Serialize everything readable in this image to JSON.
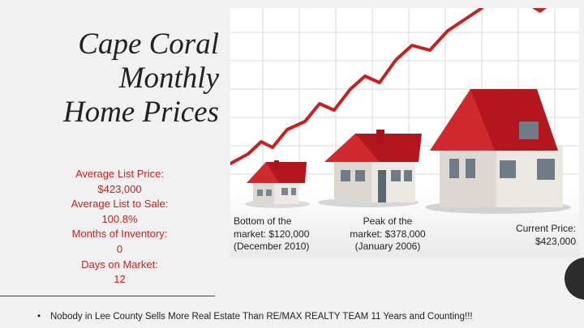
{
  "title": {
    "line1": "Cape Coral",
    "line2": "Monthly",
    "line3": "Home Prices"
  },
  "stats": {
    "list_price_label": "Average List Price:",
    "list_price_value": "$423,000",
    "list_to_sale_label": "Average List to Sale:",
    "list_to_sale_value": "100.8%",
    "inventory_label": "Months of Inventory:",
    "inventory_value": "0",
    "dom_label": "Days on Market:",
    "dom_value": "12"
  },
  "captions": {
    "bottom": [
      "Bottom of the",
      "market: $120,000",
      "(December 2010)"
    ],
    "peak": [
      "Peak of the",
      "market: $378,000",
      "(January 2006)"
    ],
    "current": [
      "Current Price:",
      "$423,000"
    ]
  },
  "footer": {
    "bullet": "•",
    "text": "Nobody in Lee County Sells More Real Estate Than RE/MAX REALTY TEAM  11 Years and Counting!!!"
  },
  "colors": {
    "accent_red": "#c8201f",
    "roof_red": "#b3161c"
  }
}
